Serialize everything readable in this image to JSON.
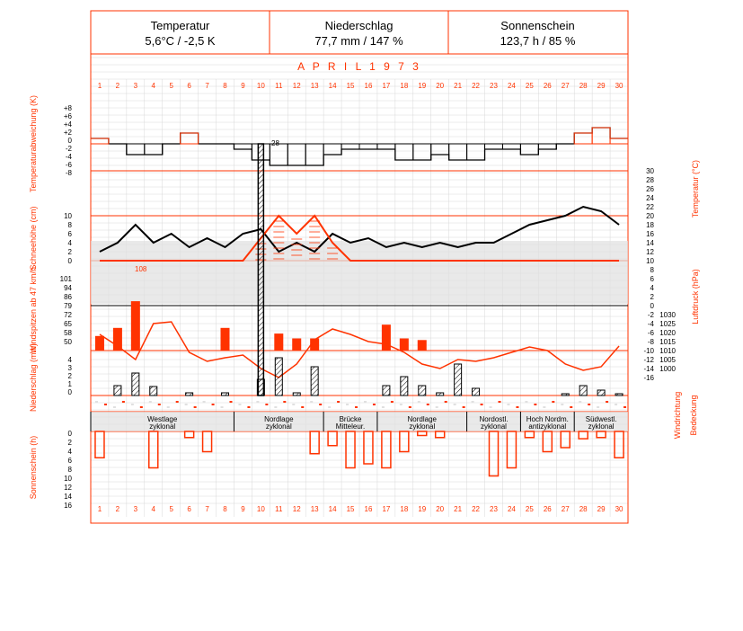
{
  "header": {
    "temperature": {
      "label": "Temperatur",
      "value": "5,6°C / -2,5 K"
    },
    "precipitation": {
      "label": "Niederschlag",
      "value": "77,7 mm / 147 %"
    },
    "sunshine": {
      "label": "Sonnenschein",
      "value": "123,7 h / 85 %"
    }
  },
  "month_title": "APRIL 1973",
  "days": [
    1,
    2,
    3,
    4,
    5,
    6,
    7,
    8,
    9,
    10,
    11,
    12,
    13,
    14,
    15,
    16,
    17,
    18,
    19,
    20,
    21,
    22,
    23,
    24,
    25,
    26,
    27,
    28,
    29,
    30
  ],
  "colors": {
    "red": "#ff3300",
    "black": "#000000",
    "gray": "#e0e0e0",
    "grid": "#d8d8d8"
  },
  "axis_titles": {
    "temp_deviation": "Temperaturabweichung (K)",
    "snow_depth": "Schneehöhe (cm)",
    "wind_peaks": "Windspitzen ab 47 km/h",
    "precipitation": "Niederschlag (mm)",
    "sunshine": "Sonnenschein (h)",
    "temperature": "Temperatur (°C)",
    "pressure": "Luftdruck (hPa)",
    "wind_direction": "Windrichtung",
    "cloud_cover": "Bedeckung"
  },
  "ticks": {
    "temp_deviation": [
      "+8",
      "+6",
      "+4",
      "+2",
      "0",
      "-2",
      "-4",
      "-6",
      "-8"
    ],
    "snow_depth": [
      "10",
      "8",
      "6",
      "4",
      "2",
      "0"
    ],
    "wind_peaks": [
      "101",
      "94",
      "86",
      "79",
      "72",
      "65",
      "58",
      "50"
    ],
    "precipitation": [
      "4",
      "3",
      "2",
      "1",
      "0"
    ],
    "sunshine": [
      "0",
      "2",
      "4",
      "6",
      "8",
      "10",
      "12",
      "14",
      "16"
    ],
    "temperature": [
      "30",
      "28",
      "26",
      "24",
      "22",
      "20",
      "18",
      "16",
      "14",
      "12",
      "10",
      "8",
      "6",
      "4",
      "2",
      "0",
      "-2",
      "-4",
      "-6",
      "-8",
      "-10",
      "-12",
      "-14",
      "-16"
    ],
    "pressure": [
      "1030",
      "1025",
      "1020",
      "1015",
      "1010",
      "1005",
      "1000"
    ]
  },
  "annotations": {
    "deviation_peak": "28",
    "wind_peak": "108"
  },
  "weather_types": [
    {
      "line1": "Westlage",
      "line2": "zyklonal"
    },
    {
      "line1": "Nordlage",
      "line2": "zyklonal"
    },
    {
      "line1": "Brücke",
      "line2": "Mitteleur."
    },
    {
      "line1": "Nordlage",
      "line2": "zyklonal"
    },
    {
      "line1": "Nordostl.",
      "line2": "zyklonal"
    },
    {
      "line1": "Hoch Nordm.",
      "line2": "antizyklonal"
    },
    {
      "line1": "Südwestl.",
      "line2": "zyklonal"
    }
  ],
  "chart_data": {
    "type": "line",
    "title": "APRIL 1973",
    "categories": [
      1,
      2,
      3,
      4,
      5,
      6,
      7,
      8,
      9,
      10,
      11,
      12,
      13,
      14,
      15,
      16,
      17,
      18,
      19,
      20,
      21,
      22,
      23,
      24,
      25,
      26,
      27,
      28,
      29,
      30
    ],
    "series": [
      {
        "name": "Temperaturabweichung (K)",
        "values": [
          1,
          0,
          -2,
          -2,
          0,
          2,
          0,
          0,
          -1,
          -3,
          -4,
          -4,
          -4,
          -2,
          -1,
          -1,
          -1,
          -3,
          -3,
          -2,
          -3,
          -3,
          -1,
          -1,
          -2,
          -1,
          0,
          2,
          3,
          1
        ]
      },
      {
        "name": "Schneehöhe (cm)",
        "values": [
          0,
          0,
          0,
          0,
          0,
          0,
          0,
          0,
          0,
          5,
          10,
          6,
          10,
          4,
          0,
          0,
          0,
          0,
          0,
          0,
          0,
          0,
          0,
          0,
          0,
          0,
          0,
          0,
          0,
          0
        ]
      },
      {
        "name": "Windspitzen ab 47 km/h",
        "values": [
          65,
          75,
          108,
          0,
          0,
          0,
          0,
          75,
          0,
          0,
          68,
          62,
          62,
          0,
          0,
          0,
          79,
          62,
          60,
          0,
          0,
          0,
          0,
          0,
          0,
          0,
          0,
          0,
          0,
          0
        ]
      },
      {
        "name": "Niederschlag (mm)",
        "values": [
          0,
          1.1,
          2.5,
          1,
          0,
          0.3,
          0,
          0.3,
          0,
          1.8,
          4.2,
          0.3,
          3.2,
          0,
          0,
          0,
          1.1,
          2.1,
          1.1,
          0.3,
          3.5,
          0.8,
          0,
          0,
          0,
          0,
          0.2,
          1.1,
          0.6,
          0.2
        ]
      },
      {
        "name": "Sonnenschein (h)",
        "values": [
          6.5,
          0,
          0,
          9,
          0,
          1.5,
          5,
          0,
          0,
          0,
          0,
          0,
          5.5,
          3.5,
          9,
          8,
          9,
          5,
          1,
          1.5,
          0,
          0,
          11,
          9,
          1.5,
          5,
          4,
          1.8,
          1.5,
          6.5
        ]
      },
      {
        "name": "Temperatur (°C)",
        "values": [
          2,
          4,
          8,
          4,
          6,
          3,
          5,
          3,
          6,
          7,
          2,
          4,
          2,
          6,
          4,
          5,
          3,
          4,
          3,
          4,
          3,
          4,
          4,
          6,
          8,
          9,
          10,
          12,
          11,
          8
        ]
      }
    ],
    "ylim_temperature": [
      -16,
      30
    ],
    "ylim_deviation": [
      -8,
      8
    ],
    "ylim_pressure": [
      1000,
      1030
    ]
  }
}
